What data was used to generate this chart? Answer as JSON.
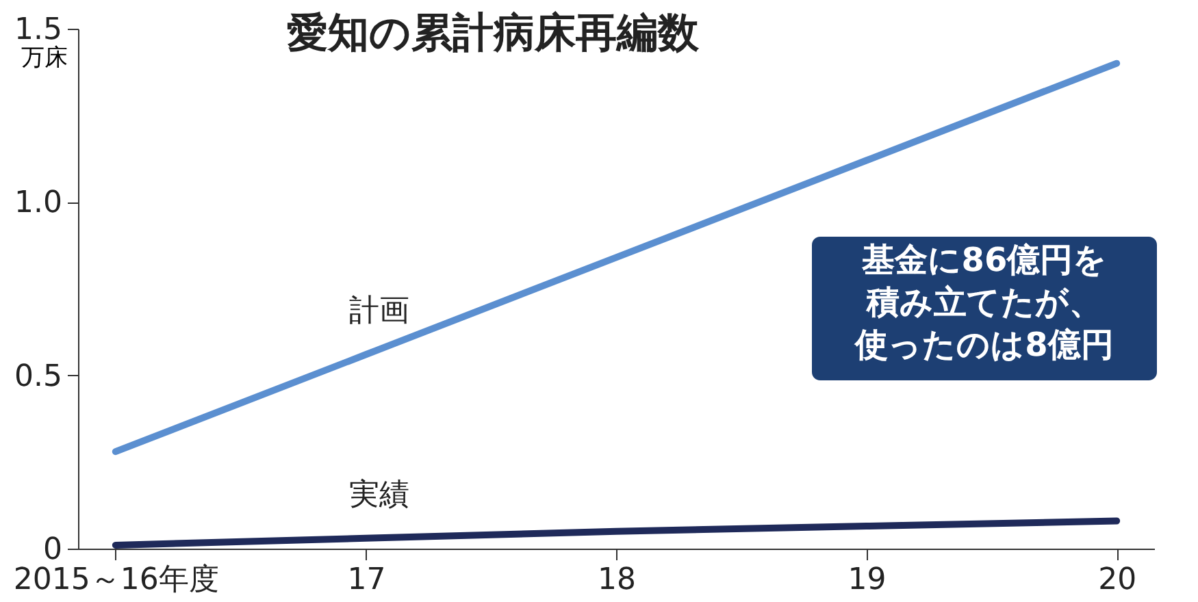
{
  "chart_data": {
    "type": "line",
    "title": "愛知の累計病床再編数",
    "ylabel": "万床",
    "categories": [
      "2015～16年度",
      "17",
      "18",
      "19",
      "20"
    ],
    "series": [
      {
        "name": "計画",
        "color": "#5b8fd0",
        "values": [
          0.28,
          0.56,
          0.84,
          1.12,
          1.4
        ]
      },
      {
        "name": "実績",
        "color": "#1f2a5a",
        "values": [
          0.01,
          0.03,
          0.05,
          0.065,
          0.08
        ]
      }
    ],
    "ylim": [
      0,
      1.5
    ],
    "yticks": [
      0,
      {
        "value": 0.5,
        "label": "0.5"
      },
      {
        "value": 1,
        "label": "1.0"
      },
      1.5
    ],
    "grid": false,
    "legend": false,
    "marker": "none",
    "line_style": "solid",
    "annotations": [
      "基金に86億円を",
      "積み立てたが、",
      "使ったのは8億円"
    ]
  }
}
